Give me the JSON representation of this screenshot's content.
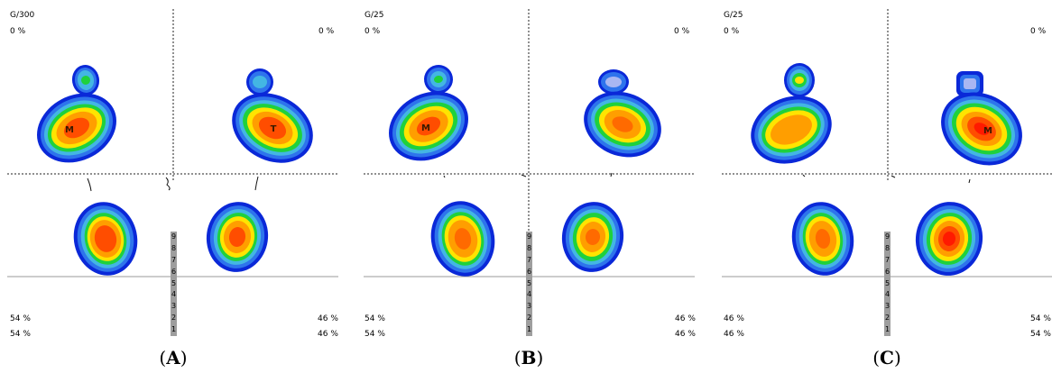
{
  "panels": [
    {
      "id": "A",
      "label": "A",
      "header": "G/300",
      "pct_top_left": "0 %",
      "pct_top_right": "0 %",
      "pct_bottom_left_1": "54 %",
      "pct_bottom_left_2": "54 %",
      "pct_bottom_right_1": "46 %",
      "pct_bottom_right_2": "46 %",
      "left_forefoot_mark": "M",
      "right_forefoot_mark": "T",
      "bar_ticks": [
        "9",
        "8",
        "7",
        "6",
        "5",
        "4",
        "3",
        "2",
        "1"
      ]
    },
    {
      "id": "B",
      "label": "B",
      "header": "G/25",
      "pct_top_left": "0 %",
      "pct_top_right": "0 %",
      "pct_bottom_left_1": "54 %",
      "pct_bottom_left_2": "54 %",
      "pct_bottom_right_1": "46 %",
      "pct_bottom_right_2": "46 %",
      "left_forefoot_mark": "M",
      "right_forefoot_mark": "",
      "bar_ticks": [
        "9",
        "8",
        "7",
        "6",
        "5",
        "4",
        "3",
        "2",
        "1"
      ]
    },
    {
      "id": "C",
      "label": "C",
      "header": "G/25",
      "pct_top_left": "0 %",
      "pct_top_right": "0 %",
      "pct_bottom_left_1": "46 %",
      "pct_bottom_left_2": "46 %",
      "pct_bottom_right_1": "54 %",
      "pct_bottom_right_2": "54 %",
      "left_forefoot_mark": "",
      "right_forefoot_mark": "M",
      "bar_ticks": [
        "9",
        "8",
        "7",
        "6",
        "5",
        "4",
        "3",
        "2",
        "1"
      ]
    }
  ],
  "colors": {
    "blue_dark": "#0a28d8",
    "blue": "#2e74ec",
    "cyan": "#43b6e3",
    "green": "#1fd13c",
    "yellow": "#ffe400",
    "orange": "#ff9e00",
    "red_orange": "#ff4d00",
    "red": "#ff1a00",
    "bar_gray": "#9e9e9e"
  }
}
